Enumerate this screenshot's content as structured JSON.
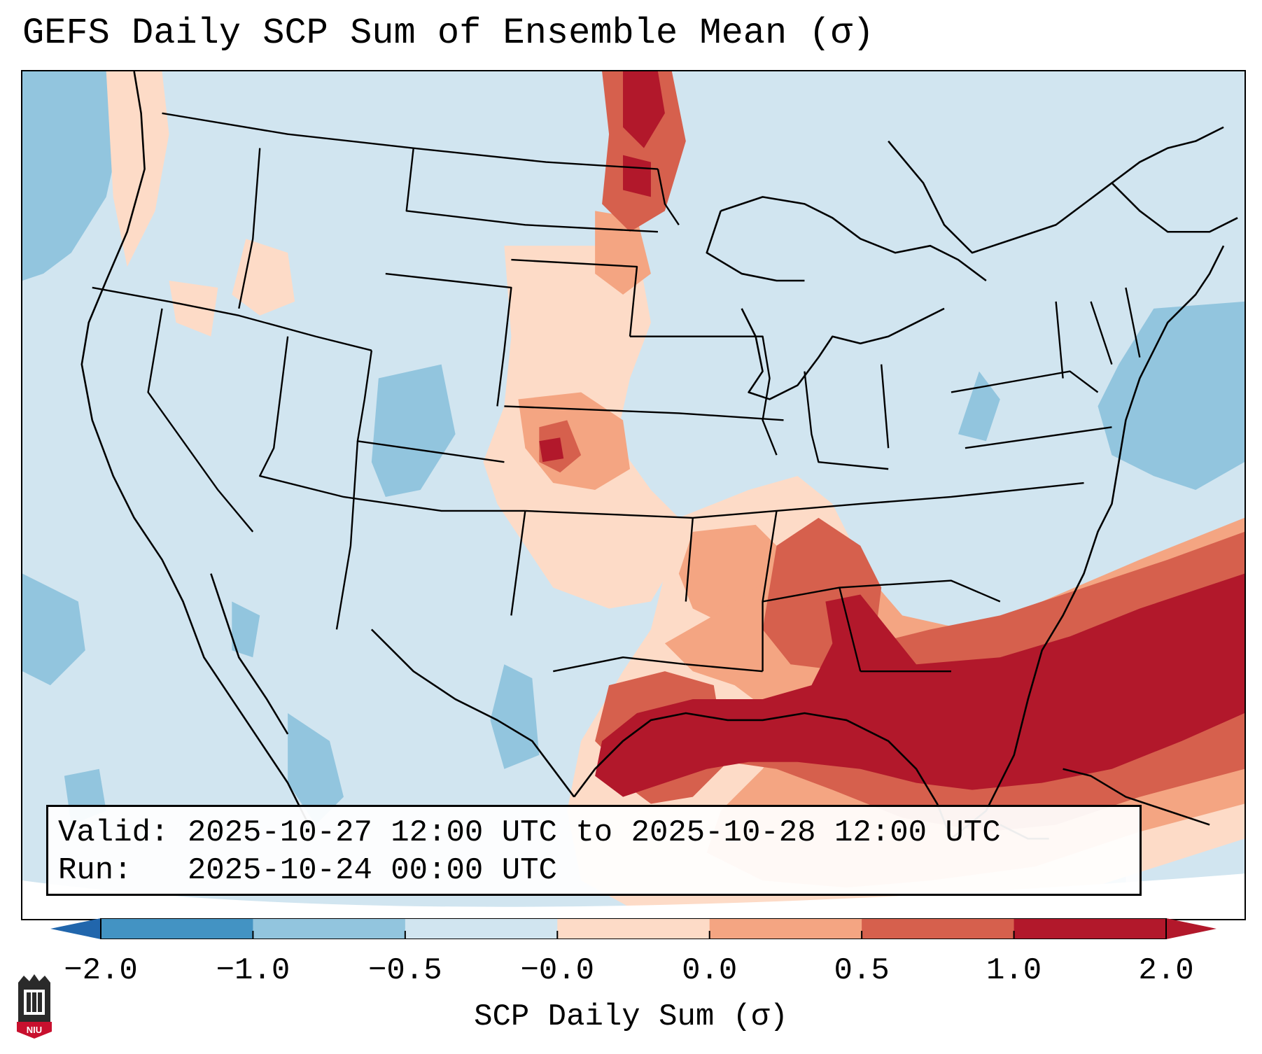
{
  "title": "GEFS Daily SCP Sum of Ensemble Mean (σ)",
  "info": {
    "valid_line": "Valid: 2025-10-27 12:00 UTC to 2025-10-28 12:00 UTC",
    "run_line": "Run:   2025-10-24 00:00 UTC"
  },
  "colorbar": {
    "label": "SCP Daily Sum (σ)",
    "ticks": [
      "−2.0",
      "−1.0",
      "−0.5",
      "−0.0",
      "0.0",
      "0.5",
      "1.0",
      "2.0"
    ],
    "colors": [
      "#4393c3",
      "#92c5de",
      "#d1e5f0",
      "#fddbc7",
      "#f4a582",
      "#d6604d",
      "#b2182b"
    ],
    "extend_low_color": "#2166ac",
    "extend_high_color": "#b2182b"
  },
  "logo": {
    "text": "NIU"
  },
  "field_colors": {
    "neg_strong": "#92c5de",
    "neutral": "#d1e5f0",
    "pos_light": "#fddbc7",
    "pos_mid": "#f4a582",
    "pos_high": "#d6604d",
    "pos_max": "#b2182b"
  }
}
